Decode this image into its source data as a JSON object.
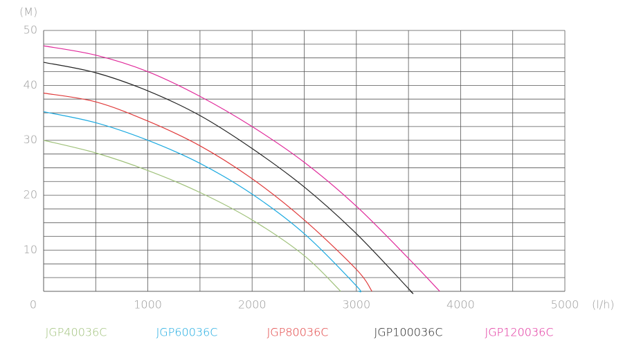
{
  "chart_data": {
    "type": "line",
    "y_label": "(M)",
    "x_label": "(l/h)",
    "xlim": [
      0,
      5000
    ],
    "ylim": [
      2.5,
      50
    ],
    "xticks": [
      0,
      1000,
      2000,
      3000,
      4000,
      5000
    ],
    "yticks": [
      10,
      20,
      30,
      40,
      50
    ],
    "x_minor_grid": [
      500,
      1500,
      2500,
      3500,
      4500
    ],
    "y_minor_grid": [
      2.5,
      5,
      7.5,
      12.5,
      15,
      17.5,
      22.5,
      25,
      27.5,
      32.5,
      35,
      37.5,
      42.5,
      45,
      47.5
    ],
    "grid": true,
    "series": [
      {
        "name": "JGP40036C",
        "color": "#9fc17a",
        "x": [
          0,
          500,
          1000,
          1500,
          2000,
          2500,
          2850
        ],
        "values": [
          30,
          27.7,
          24.5,
          20.5,
          15.5,
          9,
          2.5
        ]
      },
      {
        "name": "JGP60036C",
        "color": "#1aa9e0",
        "x": [
          0,
          500,
          1000,
          1500,
          2000,
          2500,
          3000,
          3020
        ],
        "values": [
          35.2,
          33.2,
          30,
          25.8,
          20.2,
          13,
          3.5,
          2.5
        ]
      },
      {
        "name": "JGP80036C",
        "color": "#e03a3a",
        "x": [
          0,
          500,
          1000,
          1500,
          2000,
          2500,
          3000,
          3150
        ],
        "values": [
          38.6,
          37,
          33.5,
          29,
          23,
          15.5,
          6.5,
          2.5
        ]
      },
      {
        "name": "JGP100036C",
        "color": "#222222",
        "x": [
          0,
          500,
          1000,
          1500,
          2000,
          2500,
          3000,
          3500,
          3520
        ],
        "values": [
          44.2,
          42.3,
          39,
          34.5,
          28.5,
          21.5,
          13,
          3,
          2.5
        ]
      },
      {
        "name": "JGP120036C",
        "color": "#e0299a",
        "x": [
          0,
          500,
          1000,
          1500,
          2000,
          2500,
          3000,
          3500,
          3800
        ],
        "values": [
          47.2,
          45.5,
          42.5,
          38,
          32.5,
          26,
          18,
          8.5,
          2.5
        ]
      }
    ]
  }
}
